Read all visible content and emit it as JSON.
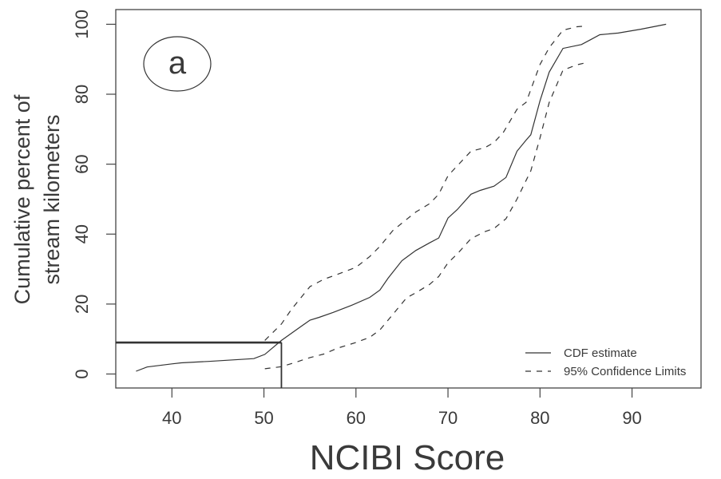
{
  "chart_data": {
    "type": "line",
    "title": "",
    "panel_label": "a",
    "xlabel": "NCIBI Score",
    "ylabel_lines": [
      "Cumulative percent of",
      "stream kilometers"
    ],
    "xlim": [
      33.9,
      97.5
    ],
    "ylim": [
      -4.0,
      104.2
    ],
    "xticks": [
      40,
      50,
      60,
      70,
      80,
      90
    ],
    "yticks": [
      0,
      20,
      40,
      60,
      80,
      100
    ],
    "grid": false,
    "legend_position": "bottom-right",
    "series": [
      {
        "name": "CDF estimate",
        "style": "solid",
        "x": [
          36.1,
          37.3,
          40.0,
          41.0,
          44.0,
          48.9,
          50.1,
          51.9,
          53.5,
          55.0,
          56.0,
          57.5,
          59.5,
          61.5,
          62.6,
          63.5,
          65.0,
          66.5,
          68.0,
          69.0,
          70.0,
          71.0,
          72.5,
          73.5,
          75.0,
          76.3,
          77.5,
          78.5,
          79.0,
          80.0,
          81.0,
          82.5,
          84.5,
          85.5,
          86.5,
          88.5,
          91.0,
          93.7
        ],
        "y": [
          0.8,
          2.0,
          2.9,
          3.2,
          3.6,
          4.4,
          5.6,
          9.6,
          12.6,
          15.4,
          16.2,
          17.6,
          19.6,
          21.9,
          24.0,
          27.4,
          32.4,
          35.3,
          37.5,
          38.9,
          44.6,
          47.0,
          51.4,
          52.5,
          53.7,
          56.2,
          63.7,
          66.9,
          68.4,
          78.1,
          86.3,
          93.1,
          94.2,
          95.6,
          97.0,
          97.5,
          98.6,
          100.0
        ]
      },
      {
        "name": "95% Confidence Limits",
        "style": "dashed",
        "segments": [
          {
            "x": [
              50.1,
              51.9,
              53.0,
              55.0,
              56.5,
              58.0,
              60.0,
              61.5,
              62.6,
              64.0,
              65.5,
              66.5,
              68.0,
              69.0,
              70.0,
              71.0,
              72.5,
              74.0,
              75.0,
              76.0,
              77.5,
              78.5,
              80.0,
              81.0,
              82.5,
              84.0,
              85.0
            ],
            "y": [
              9.6,
              14.3,
              18.5,
              25.0,
              27.1,
              28.5,
              30.5,
              33.6,
              36.5,
              41.0,
              44.2,
              46.3,
              48.7,
              51.4,
              56.7,
              59.5,
              63.7,
              64.7,
              66.2,
              69.0,
              75.7,
              77.7,
              88.5,
              93.3,
              98.3,
              99.3,
              99.5
            ]
          },
          {
            "x": [
              50.1,
              51.9,
              53.5,
              55.0,
              56.5,
              58.0,
              60.0,
              61.5,
              62.6,
              64.0,
              65.5,
              66.5,
              68.0,
              69.0,
              70.0,
              71.0,
              72.5,
              74.0,
              75.0,
              76.3,
              77.5,
              78.5,
              79.0,
              80.0,
              81.0,
              82.5,
              84.0,
              85.0
            ],
            "y": [
              1.5,
              2.1,
              3.4,
              4.7,
              5.7,
              7.4,
              9.0,
              10.5,
              12.6,
              17.0,
              21.8,
              23.2,
              25.6,
              27.9,
              31.8,
              34.3,
              38.7,
              40.7,
              41.6,
              44.4,
              50.0,
              55.4,
              58.1,
              67.5,
              77.6,
              86.9,
              88.4,
              89.0
            ]
          }
        ]
      }
    ],
    "reference_lines": {
      "x": 51.9,
      "y": 9.0
    }
  }
}
